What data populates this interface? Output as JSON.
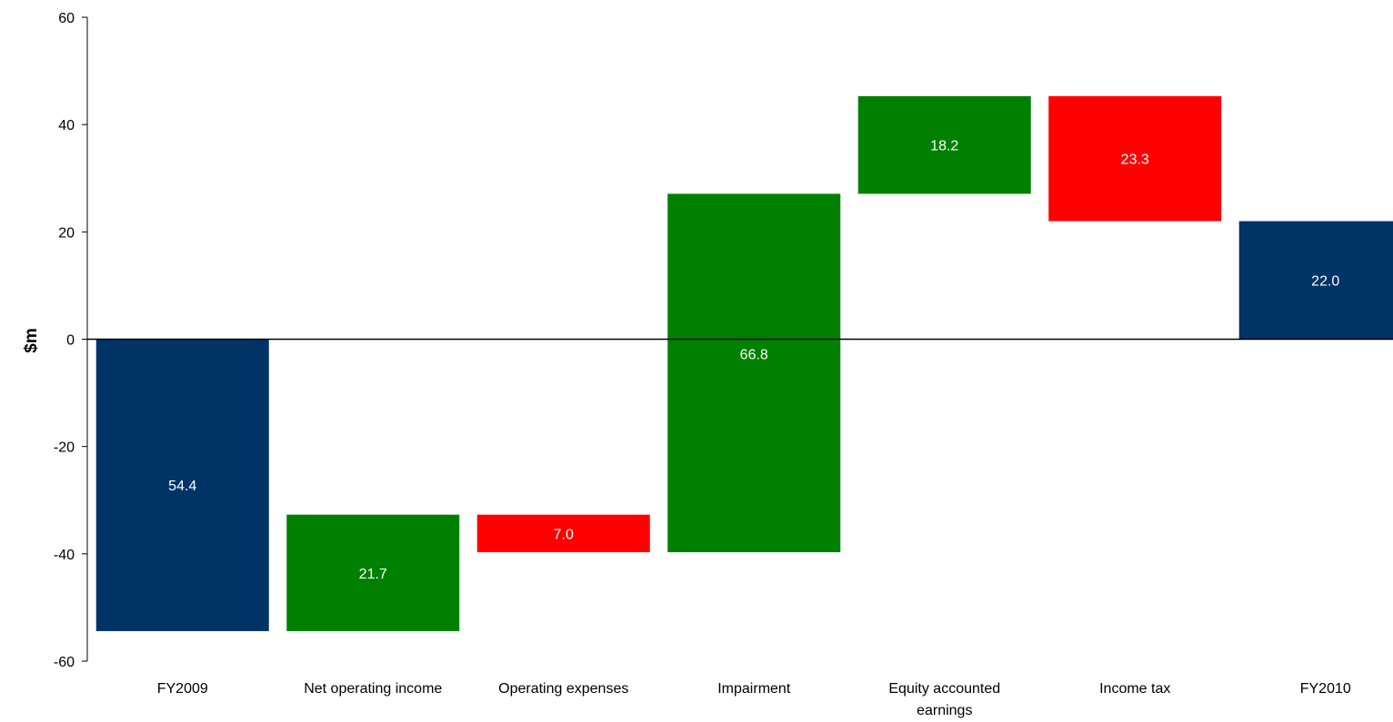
{
  "chart_data": {
    "type": "bar",
    "subtype": "waterfall",
    "title": "",
    "xlabel": "",
    "ylabel": "$m",
    "ylim": [
      -60,
      60
    ],
    "yticks": [
      60,
      40,
      20,
      0,
      -20,
      -40,
      -60
    ],
    "grid": false,
    "legend": "none",
    "categories": [
      [
        "FY2009"
      ],
      [
        "Net operating income"
      ],
      [
        "Operating expenses"
      ],
      [
        "Impairment"
      ],
      [
        "Equity accounted",
        "earnings"
      ],
      [
        "Income tax"
      ],
      [
        "FY2010"
      ]
    ],
    "bars": [
      {
        "start": 0,
        "end": -54.4,
        "label": "54.4",
        "kind": "total"
      },
      {
        "start": -54.4,
        "end": -32.7,
        "label": "21.7",
        "kind": "increase"
      },
      {
        "start": -32.7,
        "end": -39.7,
        "label": "7.0",
        "kind": "decrease"
      },
      {
        "start": -39.7,
        "end": 27.1,
        "label": "66.8",
        "kind": "increase"
      },
      {
        "start": 27.1,
        "end": 45.3,
        "label": "18.2",
        "kind": "increase"
      },
      {
        "start": 45.3,
        "end": 22.0,
        "label": "23.3",
        "kind": "decrease"
      },
      {
        "start": 0,
        "end": 22.0,
        "label": "22.0",
        "kind": "total"
      }
    ],
    "colors": {
      "total": "#003366",
      "increase": "#008000",
      "decrease": "#ff0000",
      "axis": "#000000"
    }
  }
}
